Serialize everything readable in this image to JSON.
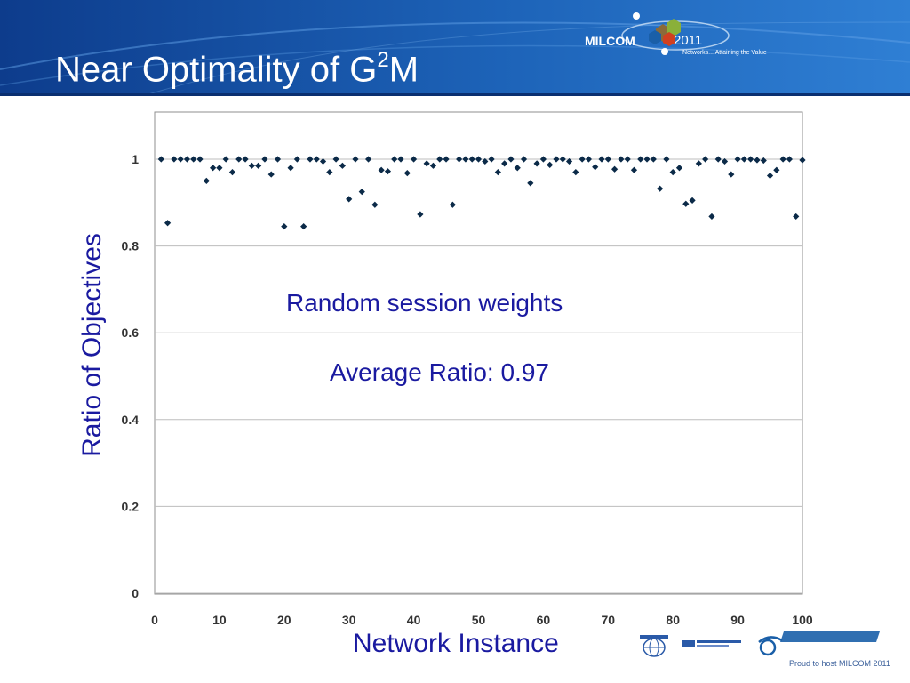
{
  "slide": {
    "title_main": "Near Optimality of G",
    "title_sup": "2",
    "title_end": "M",
    "footer": "Proud to host MILCOM 2011"
  },
  "event_logo": {
    "name": "MILCOM",
    "year": "2011",
    "tagline": "Networks... Attaining the Value"
  },
  "colors": {
    "header_dark": "#0d3c8c",
    "header_light": "#2f7fd4",
    "annotation": "#1a1aa0",
    "marker": "#0b2a48"
  },
  "chart_data": {
    "type": "scatter",
    "title": "",
    "xlabel": "Network Instance",
    "ylabel": "Ratio of Objectives",
    "xlim": [
      0,
      100
    ],
    "ylim": [
      0,
      1.1
    ],
    "xticks": [
      0,
      10,
      20,
      30,
      40,
      50,
      60,
      70,
      80,
      90,
      100
    ],
    "yticks": [
      0,
      0.2,
      0.4,
      0.6,
      0.8,
      1
    ],
    "grid": "horizontal",
    "annotations": [
      "Random session weights",
      "Average Ratio: 0.97"
    ],
    "x": [
      1,
      2,
      3,
      4,
      5,
      6,
      7,
      8,
      9,
      10,
      11,
      12,
      13,
      14,
      15,
      16,
      17,
      18,
      19,
      20,
      21,
      22,
      23,
      24,
      25,
      26,
      27,
      28,
      29,
      30,
      31,
      32,
      33,
      34,
      35,
      36,
      37,
      38,
      39,
      40,
      41,
      42,
      43,
      44,
      45,
      46,
      47,
      48,
      49,
      50,
      51,
      52,
      53,
      54,
      55,
      56,
      57,
      58,
      59,
      60,
      61,
      62,
      63,
      64,
      65,
      66,
      67,
      68,
      69,
      70,
      71,
      72,
      73,
      74,
      75,
      76,
      77,
      78,
      79,
      80,
      81,
      82,
      83,
      84,
      85,
      86,
      87,
      88,
      89,
      90,
      91,
      92,
      93,
      94,
      95,
      96,
      97,
      98,
      99,
      100
    ],
    "y": [
      1.0,
      0.853,
      1.0,
      1.0,
      1.0,
      1.0,
      1.0,
      0.95,
      0.98,
      0.98,
      1.0,
      0.97,
      1.0,
      1.0,
      0.985,
      0.985,
      1.0,
      0.965,
      1.0,
      0.845,
      0.98,
      1.0,
      0.845,
      1.0,
      1.0,
      0.995,
      0.97,
      1.0,
      0.985,
      0.908,
      1.0,
      0.925,
      1.0,
      0.895,
      0.975,
      0.972,
      1.0,
      1.0,
      0.968,
      1.0,
      0.873,
      0.99,
      0.985,
      1.0,
      1.0,
      0.895,
      1.0,
      1.0,
      1.0,
      1.0,
      0.995,
      1.0,
      0.97,
      0.99,
      1.0,
      0.98,
      1.0,
      0.945,
      0.99,
      1.0,
      0.987,
      1.0,
      1.0,
      0.995,
      0.97,
      1.0,
      1.0,
      0.982,
      1.0,
      1.0,
      0.977,
      1.0,
      1.0,
      0.975,
      1.0,
      1.0,
      1.0,
      0.932,
      1.0,
      0.97,
      0.98,
      0.897,
      0.905,
      0.99,
      1.0,
      0.868,
      1.0,
      0.995,
      0.965,
      1.0,
      1.0,
      1.0,
      0.998,
      0.997,
      0.962,
      0.975,
      1.0,
      1.0,
      0.868,
      0.998
    ]
  }
}
